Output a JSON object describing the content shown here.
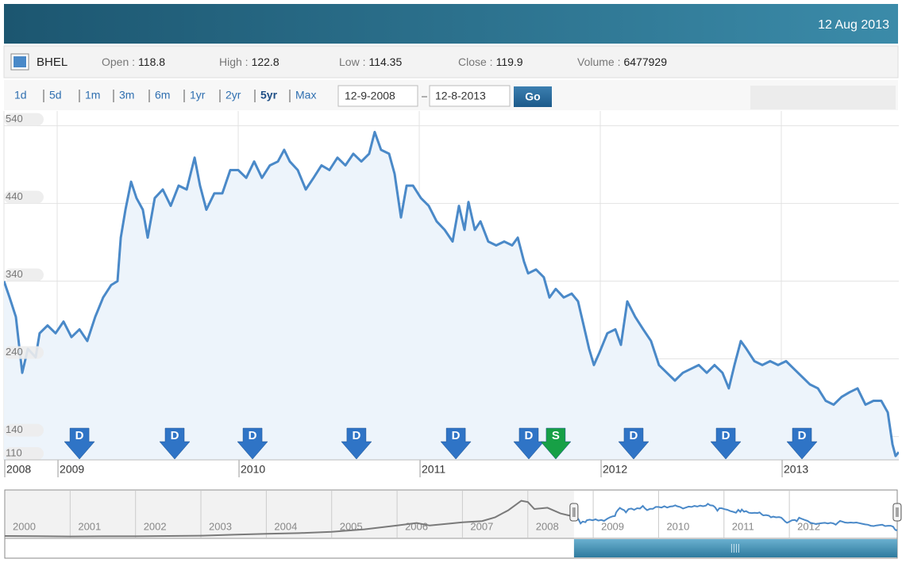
{
  "header": {
    "date": "12 Aug 2013"
  },
  "quote": {
    "fields": [
      {
        "label": "Open :",
        "value": 118.8
      },
      {
        "label": "High :",
        "value": 122.8
      },
      {
        "label": "Low :",
        "value": 114.35
      },
      {
        "label": "Close :",
        "value": 119.9
      },
      {
        "label": "Volume :",
        "value": 6477929
      }
    ]
  },
  "controls": {
    "ranges": [
      "1d",
      "5d",
      "1m",
      "3m",
      "6m",
      "1yr",
      "2yr",
      "5yr",
      "Max"
    ],
    "selected_range": "5yr",
    "from": "12-9-2008",
    "to": "12-8-2013",
    "go": "Go"
  },
  "chart_data": {
    "type": "line",
    "x": [
      2008.706,
      2008.737,
      2008.772,
      2008.807,
      2008.838,
      2008.881,
      2008.903,
      2008.947,
      2008.991,
      2009.035,
      2009.079,
      2009.123,
      2009.166,
      2009.21,
      2009.254,
      2009.298,
      2009.333,
      2009.351,
      2009.377,
      2009.408,
      2009.438,
      2009.473,
      2009.5,
      2009.539,
      2009.583,
      2009.627,
      2009.671,
      2009.715,
      2009.759,
      2009.789,
      2009.824,
      2009.868,
      2009.912,
      2009.956,
      2010.0,
      2010.044,
      2010.088,
      2010.131,
      2010.175,
      2010.219,
      2010.254,
      2010.285,
      2010.329,
      2010.373,
      2010.416,
      2010.46,
      2010.504,
      2010.548,
      2010.592,
      2010.636,
      2010.68,
      2010.723,
      2010.754,
      2010.789,
      2010.833,
      2010.864,
      2010.899,
      2010.93,
      2010.965,
      2011.009,
      2011.052,
      2011.096,
      2011.14,
      2011.184,
      2011.219,
      2011.25,
      2011.272,
      2011.307,
      2011.338,
      2011.381,
      2011.425,
      2011.469,
      2011.513,
      2011.544,
      2011.579,
      2011.601,
      2011.645,
      2011.688,
      2011.719,
      2011.754,
      2011.798,
      2011.842,
      2011.877,
      2011.908,
      2011.938,
      2011.965,
      2011.995,
      2012.039,
      2012.083,
      2012.114,
      2012.149,
      2012.193,
      2012.237,
      2012.28,
      2012.324,
      2012.368,
      2012.412,
      2012.456,
      2012.5,
      2012.544,
      2012.588,
      2012.631,
      2012.675,
      2012.71,
      2012.741,
      2012.776,
      2012.807,
      2012.851,
      2012.895,
      2012.938,
      2012.982,
      2013.026,
      2013.07,
      2013.114,
      2013.158,
      2013.202,
      2013.245,
      2013.289,
      2013.333,
      2013.377,
      2013.421,
      2013.465,
      2013.509,
      2013.552,
      2013.588,
      2013.614,
      2013.631,
      2013.649
    ],
    "series": [
      {
        "name": "BHEL",
        "color": "#4a89c8",
        "values": [
          340,
          319,
          294,
          222,
          253,
          242,
          273,
          283,
          273,
          288,
          268,
          278,
          263,
          294,
          319,
          335,
          340,
          396,
          432,
          468,
          447,
          432,
          396,
          447,
          458,
          437,
          463,
          458,
          499,
          463,
          432,
          453,
          453,
          483,
          483,
          473,
          494,
          473,
          489,
          494,
          509,
          494,
          483,
          458,
          473,
          489,
          483,
          499,
          489,
          504,
          494,
          504,
          532,
          509,
          504,
          478,
          422,
          463,
          463,
          447,
          437,
          417,
          406,
          391,
          437,
          406,
          442,
          406,
          417,
          391,
          386,
          391,
          386,
          396,
          365,
          350,
          355,
          345,
          319,
          330,
          319,
          324,
          314,
          283,
          253,
          232,
          248,
          273,
          278,
          258,
          314,
          294,
          278,
          263,
          232,
          222,
          212,
          222,
          227,
          232,
          222,
          232,
          222,
          202,
          232,
          263,
          253,
          237,
          232,
          237,
          232,
          237,
          227,
          217,
          207,
          202,
          186,
          181,
          191,
          197,
          202,
          181,
          186,
          186,
          171,
          130,
          115,
          120
        ]
      }
    ],
    "xlim": [
      2008.706,
      2013.649
    ],
    "xticks": [
      {
        "value": 2008.706,
        "label": "2008"
      },
      2009,
      2010,
      2011,
      2012,
      2013
    ],
    "ylim": [
      110,
      559
    ],
    "yticks": [
      110,
      140,
      240,
      340,
      440,
      540
    ],
    "grid": true,
    "events": [
      {
        "x": 2009.123,
        "label": "D"
      },
      {
        "x": 2009.649,
        "label": "D"
      },
      {
        "x": 2010.079,
        "label": "D"
      },
      {
        "x": 2010.653,
        "label": "D"
      },
      {
        "x": 2011.202,
        "label": "D"
      },
      {
        "x": 2011.605,
        "label": "D"
      },
      {
        "x": 2011.754,
        "label": "S"
      },
      {
        "x": 2012.184,
        "label": "D"
      },
      {
        "x": 2012.693,
        "label": "D"
      },
      {
        "x": 2013.114,
        "label": "D"
      }
    ],
    "event_colors": {
      "D": "#2f74c6",
      "S": "#17a046"
    },
    "navigator": {
      "xlim": [
        2000,
        2013.65
      ],
      "ylim": [
        0,
        700
      ],
      "xticks": [
        2000,
        2001,
        2002,
        2003,
        2004,
        2005,
        2006,
        2007,
        2008,
        2009,
        2010,
        2011,
        2012
      ],
      "color": "#7a7a7a",
      "x": [
        2000,
        2000.5,
        2001,
        2001.5,
        2002,
        2002.5,
        2003,
        2003.5,
        2004,
        2004.5,
        2005,
        2005.5,
        2006,
        2006.3,
        2006.5,
        2006.8,
        2007,
        2007.3,
        2007.5,
        2007.7,
        2007.9,
        2008,
        2008.1,
        2008.3,
        2008.5,
        2008.706
      ],
      "values": [
        25,
        22,
        18,
        20,
        20,
        25,
        30,
        45,
        60,
        70,
        90,
        130,
        190,
        230,
        190,
        220,
        240,
        260,
        320,
        430,
        580,
        560,
        450,
        470,
        380,
        330
      ]
    }
  }
}
